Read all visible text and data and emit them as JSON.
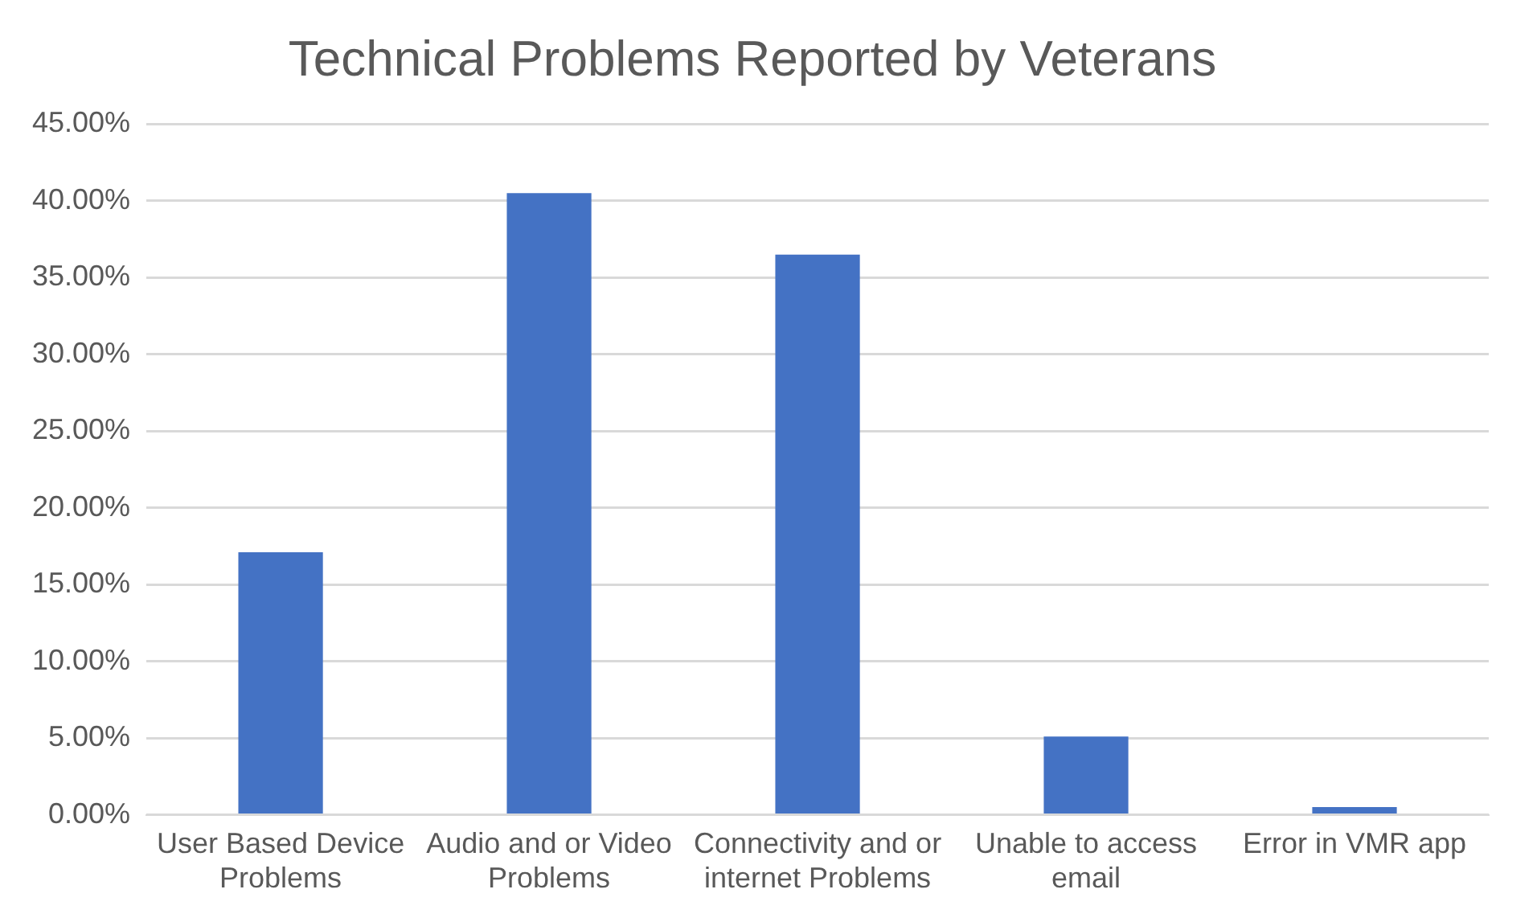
{
  "chart_data": {
    "type": "bar",
    "title": "Technical Problems Reported by Veterans",
    "categories": [
      "User Based Device Problems",
      "Audio and or Video Problems",
      "Connectivity and or internet Problems",
      "Unable to access email",
      "Error in VMR app"
    ],
    "values": [
      17.1,
      40.5,
      36.5,
      5.1,
      0.5
    ],
    "color": "#4472c4",
    "ylim": [
      0,
      45
    ],
    "yticks": [
      {
        "value": 0,
        "label": "0.00%"
      },
      {
        "value": 5,
        "label": "5.00%"
      },
      {
        "value": 10,
        "label": "10.00%"
      },
      {
        "value": 15,
        "label": "15.00%"
      },
      {
        "value": 20,
        "label": "20.00%"
      },
      {
        "value": 25,
        "label": "25.00%"
      },
      {
        "value": 30,
        "label": "30.00%"
      },
      {
        "value": 35,
        "label": "35.00%"
      },
      {
        "value": 40,
        "label": "40.00%"
      },
      {
        "value": 45,
        "label": "45.00%"
      }
    ],
    "grid": "y"
  }
}
